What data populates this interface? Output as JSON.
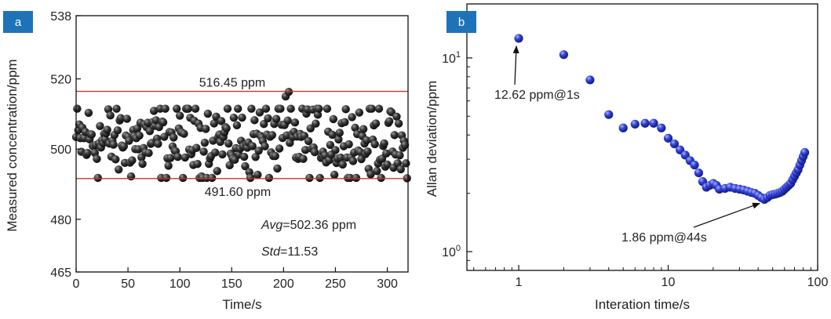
{
  "chart_data": [
    {
      "panel": "a",
      "type": "scatter",
      "xlabel": "Time/s",
      "ylabel": "Measured concentration/ppm",
      "xlim": [
        0,
        320
      ],
      "ylim": [
        465,
        538
      ],
      "xticks": [
        0,
        50,
        100,
        150,
        200,
        250,
        300
      ],
      "yticks": [
        465,
        480,
        500,
        520,
        538
      ],
      "grid": false,
      "marker_color": "#2a2a2a",
      "reference_lines": [
        {
          "y": 516.45,
          "label": "516.45 ppm",
          "color": "#c0392b"
        },
        {
          "y": 491.6,
          "label": "491.60 ppm",
          "color": "#c0392b"
        }
      ],
      "annotations": {
        "avg_key": "Avg",
        "avg_value": "=502.36 ppm",
        "std_key": "Std",
        "std_value": "=11.53"
      },
      "samples": 320,
      "mean": 502.36,
      "upper": 516.45,
      "lower": 491.6,
      "outliers": [
        [
          202,
          515.0
        ],
        [
          205,
          516.3
        ],
        [
          242,
          511.5
        ]
      ]
    },
    {
      "panel": "b",
      "type": "scatter",
      "scale": "log-log",
      "xlabel": "Interation time/s",
      "ylabel": "Allan deviation/ppm",
      "xlim": [
        0.45,
        100
      ],
      "ylim": [
        0.8,
        19
      ],
      "xticks": [
        {
          "value": 1,
          "label": "1"
        },
        {
          "value": 10,
          "label": "10"
        },
        {
          "value": 100,
          "label": "100"
        }
      ],
      "yticks": [
        {
          "value": 1,
          "base": "10",
          "exp": "0"
        },
        {
          "value": 10,
          "base": "10",
          "exp": "1"
        }
      ],
      "grid": false,
      "marker_color": "#2b35c9",
      "points": [
        [
          1,
          12.62
        ],
        [
          2,
          10.4
        ],
        [
          3,
          7.7
        ],
        [
          4,
          5.1
        ],
        [
          5,
          4.35
        ],
        [
          6,
          4.55
        ],
        [
          7,
          4.6
        ],
        [
          8,
          4.6
        ],
        [
          9,
          4.35
        ],
        [
          10,
          3.85
        ],
        [
          11,
          3.6
        ],
        [
          12,
          3.35
        ],
        [
          13,
          3.15
        ],
        [
          14,
          2.95
        ],
        [
          15,
          2.8
        ],
        [
          16,
          2.55
        ],
        [
          17,
          2.3
        ],
        [
          18,
          2.15
        ],
        [
          19,
          2.2
        ],
        [
          20,
          2.25
        ],
        [
          21,
          2.2
        ],
        [
          22,
          2.1
        ],
        [
          24,
          2.12
        ],
        [
          26,
          2.15
        ],
        [
          28,
          2.12
        ],
        [
          30,
          2.1
        ],
        [
          32,
          2.08
        ],
        [
          34,
          2.05
        ],
        [
          36,
          2.02
        ],
        [
          38,
          2.0
        ],
        [
          40,
          1.95
        ],
        [
          42,
          1.9
        ],
        [
          44,
          1.86
        ],
        [
          46,
          1.9
        ],
        [
          48,
          1.95
        ],
        [
          50,
          1.97
        ],
        [
          52,
          1.98
        ],
        [
          54,
          2.0
        ],
        [
          56,
          2.02
        ],
        [
          58,
          2.05
        ],
        [
          60,
          2.1
        ],
        [
          62,
          2.15
        ],
        [
          64,
          2.2
        ],
        [
          66,
          2.25
        ],
        [
          68,
          2.35
        ],
        [
          70,
          2.45
        ],
        [
          72,
          2.55
        ],
        [
          74,
          2.65
        ],
        [
          76,
          2.8
        ],
        [
          78,
          2.95
        ],
        [
          80,
          3.1
        ],
        [
          82,
          3.25
        ]
      ],
      "annotations": [
        {
          "text": "12.62 ppm@1s",
          "x": 1,
          "y": 12.62
        },
        {
          "text": "1.86 ppm@44s",
          "x": 44,
          "y": 1.86
        }
      ]
    }
  ],
  "panel_labels": {
    "a": "a",
    "b": "b"
  },
  "panel_label_color": "#1e73b8"
}
